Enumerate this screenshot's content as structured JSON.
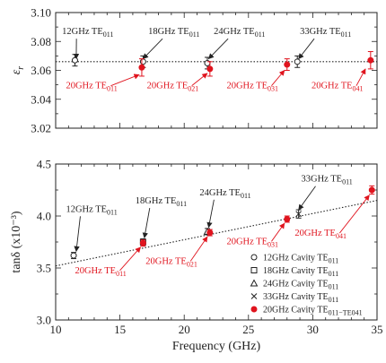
{
  "chart_data": [
    {
      "type": "scatter",
      "ylabel": "εr",
      "ylim": [
        3.02,
        3.1
      ],
      "xlim": [
        10,
        35
      ],
      "yticks": [
        "3.02",
        "3.04",
        "3.06",
        "3.08",
        "3.10"
      ],
      "grid": false,
      "reference_line": {
        "y": 3.066,
        "style": "dotted"
      },
      "series": [
        {
          "color": "#222222",
          "marker": "open",
          "points": [
            {
              "x": 11.5,
              "y": 3.067,
              "err": 0.004
            },
            {
              "x": 16.8,
              "y": 3.066,
              "err": 0.004
            },
            {
              "x": 21.8,
              "y": 3.065,
              "err": 0.004
            },
            {
              "x": 28.8,
              "y": 3.066,
              "err": 0.004
            }
          ]
        },
        {
          "color": "#e0141e",
          "marker": "filled",
          "points": [
            {
              "x": 16.7,
              "y": 3.062,
              "err": 0.006
            },
            {
              "x": 22.0,
              "y": 3.061,
              "err": 0.005
            },
            {
              "x": 28.0,
              "y": 3.064,
              "err": 0.004
            },
            {
              "x": 34.5,
              "y": 3.067,
              "err": 0.006
            }
          ]
        }
      ],
      "annotations": [
        {
          "text": "12GHz",
          "mode": "TE011",
          "color": "#222222",
          "at": [
            11.6,
            3.068
          ],
          "label": [
            10.5,
            3.085
          ]
        },
        {
          "text": "18GHz",
          "mode": "TE011",
          "color": "#222222",
          "at": [
            16.8,
            3.068
          ],
          "label": [
            17.2,
            3.085
          ]
        },
        {
          "text": "24GHz",
          "mode": "TE011",
          "color": "#222222",
          "at": [
            21.9,
            3.068
          ],
          "label": [
            22.3,
            3.085
          ]
        },
        {
          "text": "33GHz",
          "mode": "TE011",
          "color": "#222222",
          "at": [
            28.9,
            3.068
          ],
          "label": [
            29.0,
            3.085
          ]
        },
        {
          "text": "20GHz",
          "mode": "TE011",
          "color": "#e0141e",
          "at": [
            16.5,
            3.057
          ],
          "label": [
            10.8,
            3.0475
          ]
        },
        {
          "text": "20GHz",
          "mode": "TE021",
          "color": "#e0141e",
          "at": [
            21.8,
            3.058
          ],
          "label": [
            17.1,
            3.0475
          ]
        },
        {
          "text": "20GHz",
          "mode": "TE031",
          "color": "#e0141e",
          "at": [
            27.8,
            3.06
          ],
          "label": [
            23.3,
            3.0475
          ]
        },
        {
          "text": "20GHz",
          "mode": "TE041",
          "color": "#e0141e",
          "at": [
            34.1,
            3.061
          ],
          "label": [
            29.9,
            3.0475
          ]
        }
      ]
    },
    {
      "type": "scatter",
      "xlabel": "Frequency (GHz)",
      "ylabel": "tanδ (x10⁻³)",
      "ylim": [
        3.0,
        4.5
      ],
      "xlim": [
        10,
        35
      ],
      "xticks": [
        "10",
        "15",
        "20",
        "25",
        "30",
        "35"
      ],
      "yticks": [
        "3.0",
        "3.5",
        "4.0",
        "4.5"
      ],
      "grid": false,
      "trend_line": {
        "from": [
          10,
          3.52
        ],
        "to": [
          35,
          4.15
        ],
        "style": "dotted"
      },
      "series": [
        {
          "name": "12GHz Cavity TE011",
          "color": "#222222",
          "marker": "circle",
          "points": [
            {
              "x": 11.4,
              "y": 3.62,
              "err": 0.03
            }
          ]
        },
        {
          "name": "18GHz Cavity TE011",
          "color": "#222222",
          "marker": "square",
          "points": [
            {
              "x": 16.8,
              "y": 3.75,
              "err": 0.03
            }
          ]
        },
        {
          "name": "24GHz Cavity TE011",
          "color": "#222222",
          "marker": "triangle",
          "points": [
            {
              "x": 21.8,
              "y": 3.85,
              "err": 0.03
            }
          ]
        },
        {
          "name": "33GHz Cavity TE011",
          "color": "#222222",
          "marker": "cross",
          "points": [
            {
              "x": 28.9,
              "y": 4.02,
              "err": 0.04
            }
          ]
        },
        {
          "name": "20GHz Cavity TE011−TE041",
          "color": "#e0141e",
          "marker": "filled-circle",
          "points": [
            {
              "x": 16.8,
              "y": 3.74,
              "err": 0.03
            },
            {
              "x": 22.0,
              "y": 3.84,
              "err": 0.03
            },
            {
              "x": 28.0,
              "y": 3.97,
              "err": 0.03
            },
            {
              "x": 34.6,
              "y": 4.25,
              "err": 0.04
            }
          ]
        }
      ],
      "annotations": [
        {
          "text": "12GHz",
          "mode": "TE011",
          "color": "#222222",
          "at": [
            11.6,
            3.66
          ],
          "label": [
            10.8,
            4.04
          ]
        },
        {
          "text": "18GHz",
          "mode": "TE011",
          "color": "#222222",
          "at": [
            16.9,
            3.79
          ],
          "label": [
            16.2,
            4.12
          ]
        },
        {
          "text": "24GHz",
          "mode": "TE011",
          "color": "#222222",
          "at": [
            21.9,
            3.89
          ],
          "label": [
            21.2,
            4.2
          ]
        },
        {
          "text": "33GHz",
          "mode": "TE011",
          "color": "#222222",
          "at": [
            28.9,
            4.06
          ],
          "label": [
            29.1,
            4.33
          ]
        },
        {
          "text": "20GHz",
          "mode": "TE011",
          "color": "#e0141e",
          "at": [
            16.6,
            3.7
          ],
          "label": [
            11.5,
            3.45
          ]
        },
        {
          "text": "20GHz",
          "mode": "TE021",
          "color": "#e0141e",
          "at": [
            21.8,
            3.8
          ],
          "label": [
            17.0,
            3.54
          ]
        },
        {
          "text": "20GHz",
          "mode": "TE031",
          "color": "#e0141e",
          "at": [
            27.8,
            3.93
          ],
          "label": [
            23.3,
            3.73
          ]
        },
        {
          "text": "20GHz",
          "mode": "TE041",
          "color": "#e0141e",
          "at": [
            34.4,
            4.2
          ],
          "label": [
            28.6,
            3.81
          ]
        }
      ],
      "legend": {
        "placement": "bottom-right",
        "items": [
          {
            "marker": "circle",
            "color": "#222222",
            "text": "12GHz Cavity",
            "mode": "TE011"
          },
          {
            "marker": "square",
            "color": "#222222",
            "text": "18GHz Cavity",
            "mode": "TE011"
          },
          {
            "marker": "triangle",
            "color": "#222222",
            "text": "24GHz Cavity",
            "mode": "TE011"
          },
          {
            "marker": "cross",
            "color": "#222222",
            "text": "33GHz Cavity",
            "mode": "TE011"
          },
          {
            "marker": "filled-circle",
            "color": "#e0141e",
            "text": "20GHz Cavity",
            "mode": "TE011−TE041"
          }
        ]
      }
    }
  ]
}
